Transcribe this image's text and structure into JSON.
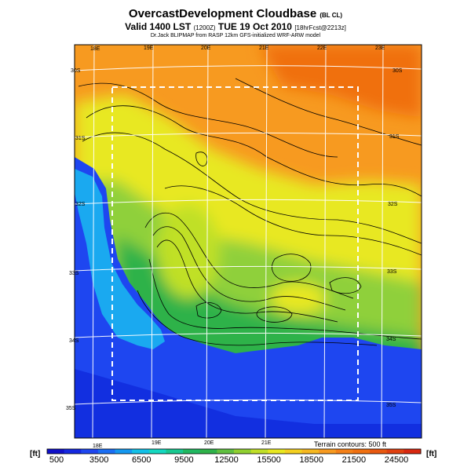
{
  "header": {
    "title": "OvercastDevelopment Cloudbase",
    "title_suffix": "(BL CL)",
    "valid_main": "Valid 1400 LST",
    "valid_code": "(1200Z)",
    "valid_date": "TUE 19 Oct 2010",
    "valid_run": "[18hrFcst@2213z]",
    "subtitle": "Dr.Jack BLIPMAP from RASP 12km GFS-initialized WRF-ARW model"
  },
  "map": {
    "lon_top_labels": [
      "18E",
      "19E",
      "20E",
      "21E",
      "22E",
      "23E"
    ],
    "lon_bottom_labels": [
      "18E",
      "19E",
      "20E",
      "21E"
    ],
    "lat_left_labels": [
      "30S",
      "31S",
      "32S",
      "33S",
      "34S",
      "35S"
    ],
    "lat_right_labels": [
      "30S",
      "31S",
      "32S",
      "33S",
      "34S",
      "35S"
    ],
    "terrain_note": "Terrain contours: 500 ft",
    "colors": {
      "ocean_deep": "#0a1fd6",
      "ocean": "#1e46f0",
      "coast_cyan": "#1ab4f0",
      "green": "#2fb24a",
      "light_green": "#8fd03a",
      "yellow": "#e8e820",
      "orange": "#f79a20",
      "dark_orange": "#f07010"
    }
  },
  "colorbar": {
    "unit_left": "[ft]",
    "unit_right": "[ft]",
    "labels": [
      "500",
      "3500",
      "6500",
      "9500",
      "12500",
      "15500",
      "18500",
      "21500",
      "24500"
    ],
    "colors": [
      "#1010c8",
      "#1528e0",
      "#1e46f0",
      "#1a6ef4",
      "#1598f0",
      "#12c0e8",
      "#15d8c0",
      "#18c890",
      "#20b860",
      "#2fb24a",
      "#60c040",
      "#90d030",
      "#c0e028",
      "#e8e820",
      "#f4d020",
      "#f6b820",
      "#f79a20",
      "#f48018",
      "#f07010",
      "#e85810",
      "#e04010",
      "#d82810"
    ]
  }
}
